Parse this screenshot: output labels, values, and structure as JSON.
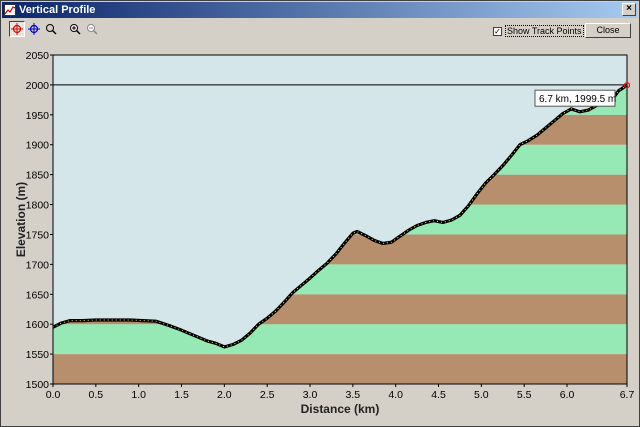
{
  "window": {
    "title": "Vertical Profile"
  },
  "toolbar": {
    "tools": [
      {
        "name": "crosshair-red-icon",
        "active": true
      },
      {
        "name": "crosshair-blue-icon",
        "active": false
      },
      {
        "name": "zoom-region-icon",
        "active": false
      },
      {
        "name": "zoom-in-icon",
        "active": false
      },
      {
        "name": "zoom-out-icon",
        "active": false
      }
    ]
  },
  "options": {
    "show_track_points_label": "Show Track Points",
    "show_track_points_checked": true
  },
  "buttons": {
    "close_label": "Close"
  },
  "tooltip": {
    "text": "6.7 km, 1999.5 m"
  },
  "colors": {
    "plot_background": "#d4e6e9",
    "band_brown": "#b78f6c",
    "band_green": "#96e8b4",
    "track_line": "#000000",
    "track_points": "#f5e34a",
    "marker": "#ff0000"
  },
  "chart_data": {
    "type": "area",
    "xlabel": "Distance   (km)",
    "ylabel": "Elevation  (m)",
    "xlim": [
      0,
      6.7
    ],
    "ylim": [
      1500,
      2050
    ],
    "xticks": [
      "0.0",
      "0.5",
      "1.0",
      "1.5",
      "2.0",
      "2.5",
      "3.0",
      "3.5",
      "4.0",
      "4.5",
      "5.0",
      "5.5",
      "6.0",
      "6.7"
    ],
    "xtick_values": [
      0,
      0.5,
      1,
      1.5,
      2,
      2.5,
      3,
      3.5,
      4,
      4.5,
      5,
      5.5,
      6,
      6.7
    ],
    "yticks": [
      1500,
      1550,
      1600,
      1650,
      1700,
      1750,
      1800,
      1850,
      1900,
      1950,
      2000,
      2050
    ],
    "bands": [
      {
        "from": 1500,
        "to": 1550,
        "color": "brown"
      },
      {
        "from": 1550,
        "to": 1600,
        "color": "green"
      },
      {
        "from": 1600,
        "to": 1650,
        "color": "brown"
      },
      {
        "from": 1650,
        "to": 1700,
        "color": "green"
      },
      {
        "from": 1700,
        "to": 1750,
        "color": "brown"
      },
      {
        "from": 1750,
        "to": 1800,
        "color": "green"
      },
      {
        "from": 1800,
        "to": 1850,
        "color": "brown"
      },
      {
        "from": 1850,
        "to": 1900,
        "color": "green"
      },
      {
        "from": 1900,
        "to": 1950,
        "color": "brown"
      },
      {
        "from": 1950,
        "to": 2000,
        "color": "green"
      }
    ],
    "reference_line": 2000,
    "series": [
      {
        "x": [
          0,
          0.1,
          0.2,
          0.35,
          0.5,
          0.7,
          0.9,
          1.05,
          1.2,
          1.35,
          1.5,
          1.65,
          1.8,
          1.9,
          2.0,
          2.1,
          2.2,
          2.3,
          2.4,
          2.5,
          2.6,
          2.7,
          2.8,
          2.9,
          3.0,
          3.1,
          3.2,
          3.3,
          3.4,
          3.5,
          3.55,
          3.65,
          3.75,
          3.85,
          3.95,
          4.05,
          4.15,
          4.25,
          4.35,
          4.45,
          4.55,
          4.65,
          4.75,
          4.85,
          4.95,
          5.05,
          5.15,
          5.25,
          5.35,
          5.45,
          5.55,
          5.65,
          5.75,
          5.85,
          5.95,
          6.05,
          6.15,
          6.25,
          6.35,
          6.45,
          6.55,
          6.6,
          6.7
        ],
        "y": [
          1595,
          1602,
          1606,
          1606,
          1607,
          1607,
          1607,
          1606,
          1605,
          1598,
          1590,
          1581,
          1572,
          1568,
          1562,
          1566,
          1573,
          1585,
          1600,
          1610,
          1622,
          1637,
          1653,
          1665,
          1677,
          1690,
          1702,
          1717,
          1735,
          1752,
          1755,
          1748,
          1740,
          1735,
          1737,
          1747,
          1757,
          1765,
          1770,
          1773,
          1770,
          1774,
          1782,
          1798,
          1818,
          1836,
          1850,
          1865,
          1882,
          1900,
          1907,
          1916,
          1928,
          1940,
          1952,
          1960,
          1955,
          1958,
          1966,
          1972,
          1980,
          1990,
          1999.5
        ]
      }
    ]
  }
}
